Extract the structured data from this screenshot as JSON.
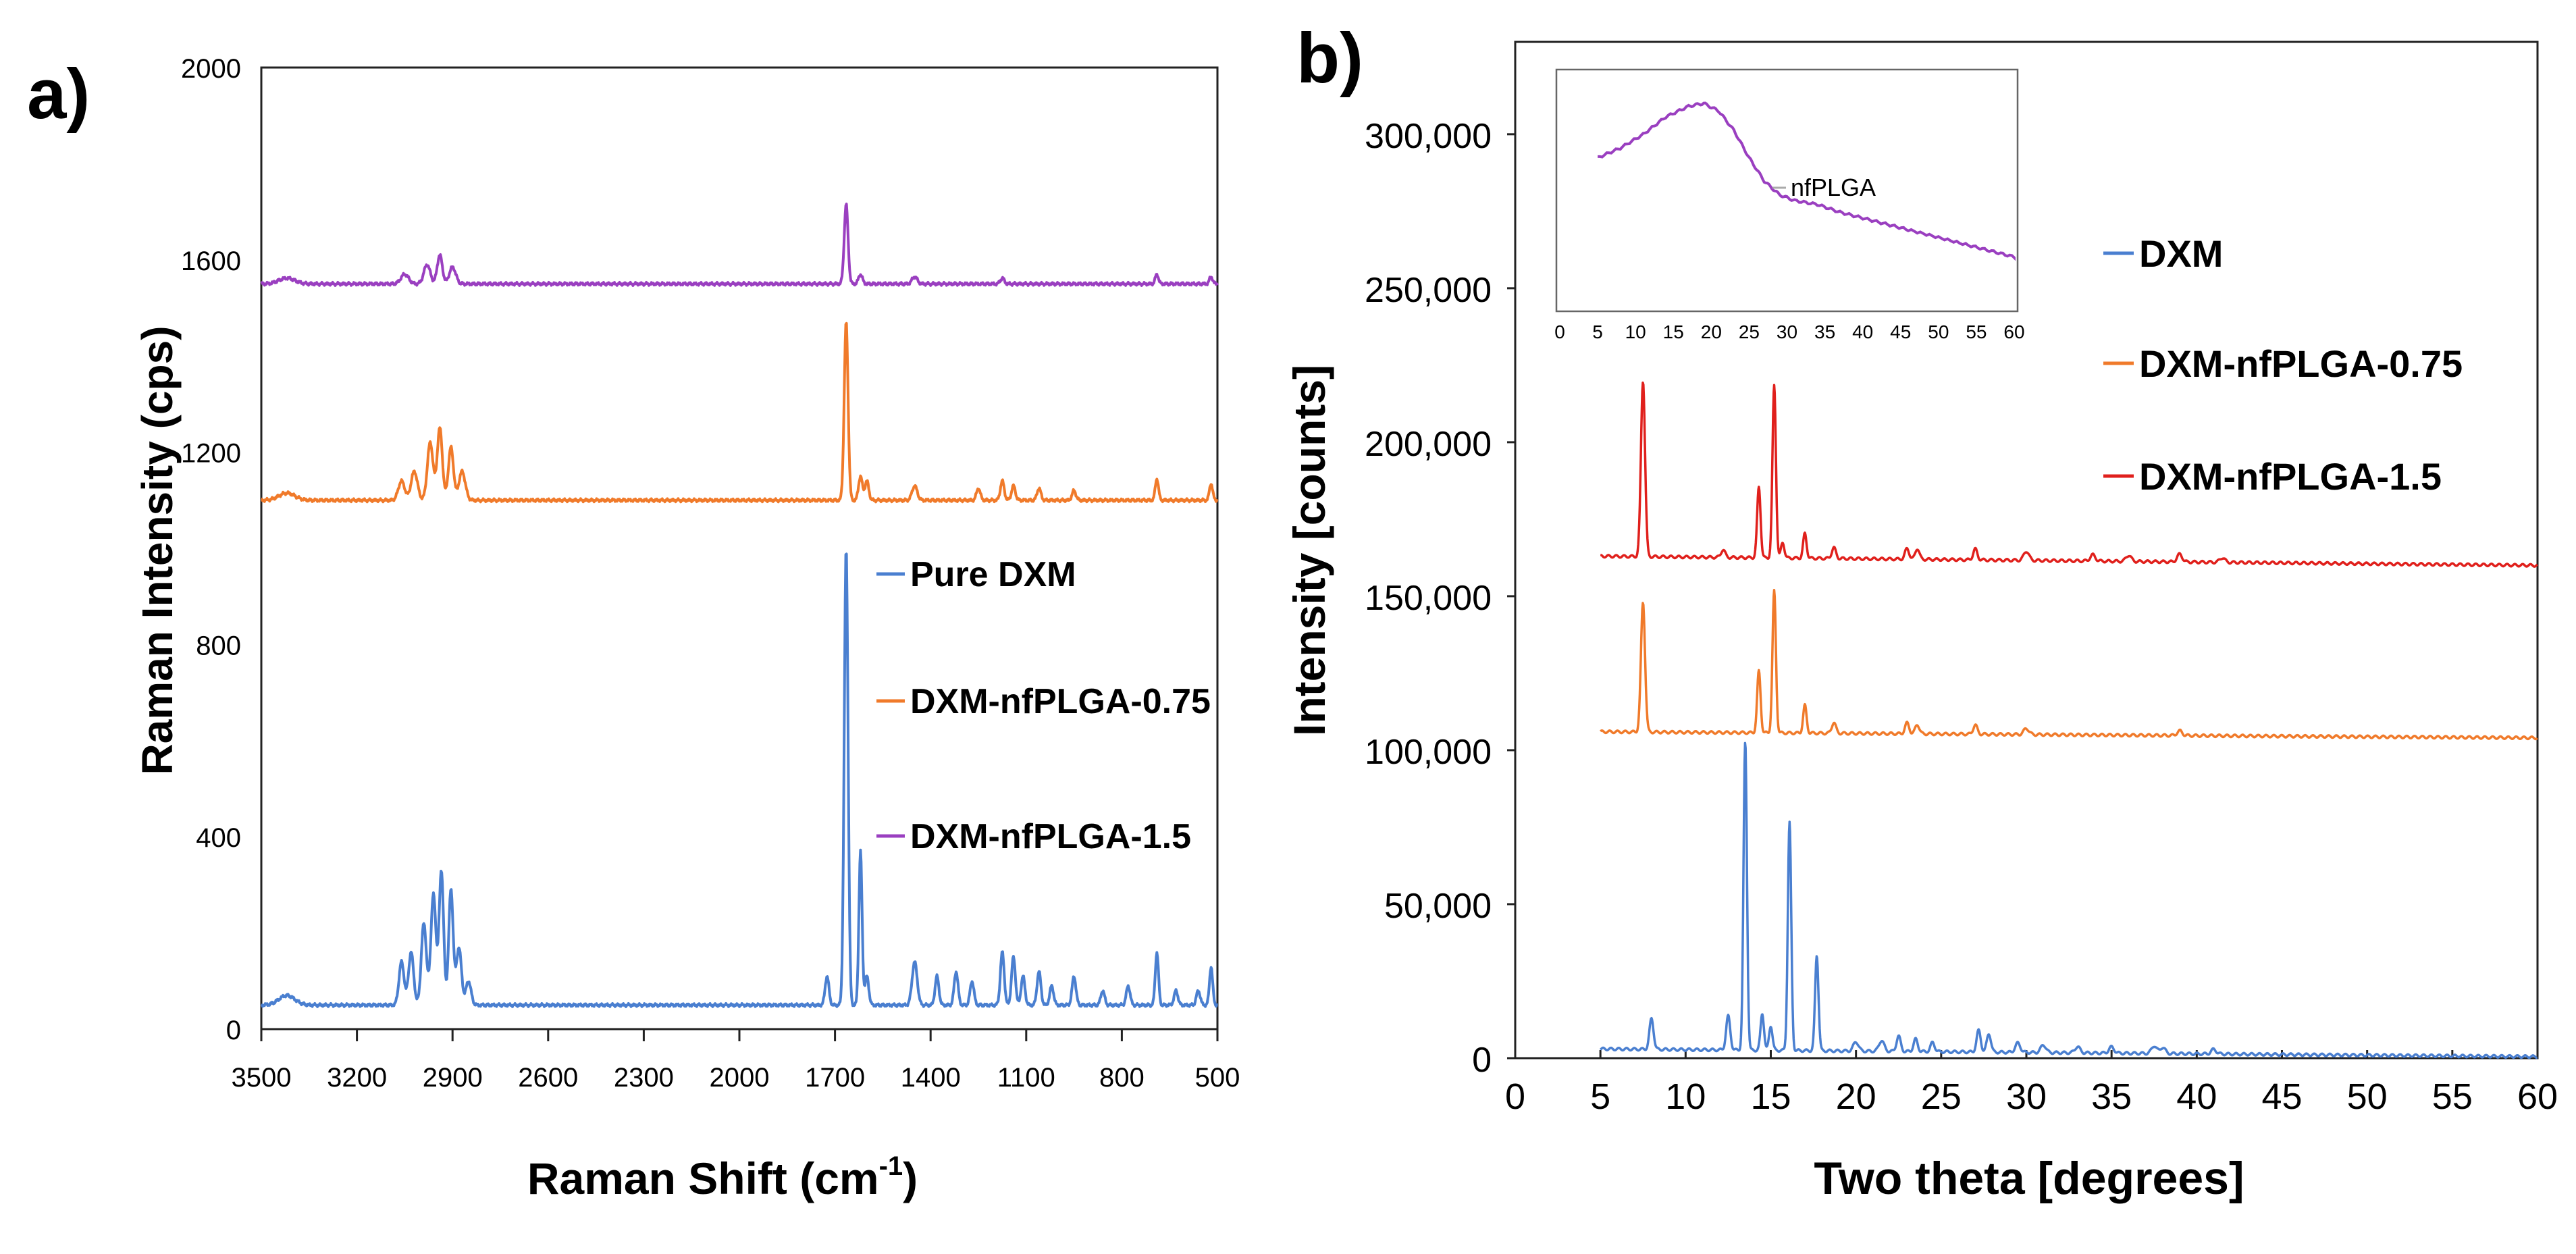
{
  "chart_data": [
    {
      "panel": "a)",
      "type": "line",
      "title": "",
      "xlabel_main": "Raman Shift (cm",
      "xlabel_sup": "-1",
      "xlabel_close": ")",
      "ylabel": "Raman Intensity (cps)",
      "xlim": [
        3500,
        500
      ],
      "ylim": [
        0,
        2000
      ],
      "xticks": [
        "3500",
        "3200",
        "2900",
        "2600",
        "2300",
        "2000",
        "1700",
        "1400",
        "1100",
        "800",
        "500"
      ],
      "yticks": [
        "0",
        "400",
        "800",
        "1200",
        "1600",
        "2000"
      ],
      "legend": [
        "Pure DXM",
        "DXM-nfPLGA-0.75",
        "DXM-nfPLGA-1.5"
      ],
      "series": [
        {
          "name": "Pure DXM",
          "color": "#4a7fd0",
          "baseline": 50,
          "peaks": [
            [
              3420,
              20,
              25
            ],
            [
              3060,
              90,
              8
            ],
            [
              3030,
              110,
              8
            ],
            [
              2990,
              170,
              8
            ],
            [
              2960,
              230,
              8
            ],
            [
              2935,
              280,
              7
            ],
            [
              2905,
              240,
              7
            ],
            [
              2880,
              120,
              8
            ],
            [
              2850,
              50,
              8
            ],
            [
              1725,
              60,
              6
            ],
            [
              1665,
              950,
              6
            ],
            [
              1620,
              320,
              5
            ],
            [
              1600,
              60,
              6
            ],
            [
              1450,
              90,
              8
            ],
            [
              1380,
              60,
              6
            ],
            [
              1320,
              70,
              6
            ],
            [
              1270,
              50,
              6
            ],
            [
              1175,
              110,
              6
            ],
            [
              1140,
              100,
              6
            ],
            [
              1110,
              60,
              6
            ],
            [
              1060,
              70,
              6
            ],
            [
              1020,
              40,
              6
            ],
            [
              950,
              60,
              6
            ],
            [
              860,
              30,
              6
            ],
            [
              780,
              40,
              6
            ],
            [
              690,
              110,
              5
            ],
            [
              630,
              30,
              6
            ],
            [
              560,
              30,
              6
            ],
            [
              520,
              80,
              5
            ]
          ]
        },
        {
          "name": "DXM-nfPLGA-0.75",
          "color": "#f07a2a",
          "baseline": 1100,
          "peaks": [
            [
              3420,
              15,
              25
            ],
            [
              3060,
              40,
              10
            ],
            [
              3020,
              60,
              10
            ],
            [
              2970,
              120,
              9
            ],
            [
              2940,
              150,
              8
            ],
            [
              2905,
              110,
              8
            ],
            [
              2870,
              60,
              10
            ],
            [
              1665,
              370,
              6
            ],
            [
              1620,
              50,
              6
            ],
            [
              1600,
              40,
              6
            ],
            [
              1450,
              30,
              8
            ],
            [
              1250,
              25,
              6
            ],
            [
              1175,
              40,
              6
            ],
            [
              1140,
              30,
              6
            ],
            [
              1060,
              25,
              6
            ],
            [
              950,
              20,
              6
            ],
            [
              690,
              45,
              5
            ],
            [
              520,
              35,
              5
            ]
          ]
        },
        {
          "name": "DXM-nfPLGA-1.5",
          "color": "#9a3fc0",
          "baseline": 1550,
          "peaks": [
            [
              3420,
              12,
              25
            ],
            [
              3050,
              20,
              12
            ],
            [
              2980,
              40,
              10
            ],
            [
              2940,
              60,
              8
            ],
            [
              2900,
              35,
              10
            ],
            [
              1665,
              165,
              6
            ],
            [
              1620,
              20,
              6
            ],
            [
              1450,
              15,
              8
            ],
            [
              1175,
              12,
              6
            ],
            [
              690,
              20,
              5
            ],
            [
              520,
              15,
              5
            ]
          ]
        }
      ]
    },
    {
      "panel": "b)",
      "type": "line",
      "title": "",
      "xlabel": "Two theta [degrees]",
      "ylabel": "Intensity [counts]",
      "xlim": [
        0,
        60
      ],
      "ylim": [
        0,
        330000
      ],
      "xticks": [
        "0",
        "5",
        "10",
        "15",
        "20",
        "25",
        "30",
        "35",
        "40",
        "45",
        "50",
        "55",
        "60"
      ],
      "yticks": [
        "0",
        "50,000",
        "100,000",
        "150,000",
        "200,000",
        "250,000",
        "300,000"
      ],
      "legend": [
        "DXM",
        "DXM-nfPLGA-0.75",
        "DXM-nfPLGA-1.5"
      ],
      "series": [
        {
          "name": "DXM",
          "color": "#4a7fd0",
          "baseline_start": 3000,
          "baseline_end": 500,
          "peaks": [
            [
              8.0,
              10000,
              0.12
            ],
            [
              12.5,
              11000,
              0.12
            ],
            [
              13.5,
              100000,
              0.1
            ],
            [
              14.5,
              12000,
              0.1
            ],
            [
              15.0,
              8000,
              0.1
            ],
            [
              16.1,
              74000,
              0.1
            ],
            [
              17.7,
              31000,
              0.1
            ],
            [
              20.0,
              3000,
              0.15
            ],
            [
              21.5,
              3500,
              0.15
            ],
            [
              22.5,
              5000,
              0.12
            ],
            [
              23.5,
              4000,
              0.12
            ],
            [
              24.5,
              3000,
              0.12
            ],
            [
              27.2,
              7000,
              0.12
            ],
            [
              27.8,
              6000,
              0.12
            ],
            [
              29.5,
              3000,
              0.15
            ],
            [
              31.0,
              2500,
              0.15
            ],
            [
              33.0,
              2000,
              0.15
            ],
            [
              35.0,
              2000,
              0.15
            ],
            [
              37.5,
              2500,
              0.15
            ],
            [
              38.0,
              2000,
              0.15
            ],
            [
              41.0,
              1500,
              0.15
            ]
          ]
        },
        {
          "name": "DXM-nfPLGA-0.75",
          "color": "#f07a2a",
          "baseline_start": 106000,
          "baseline_end": 104000,
          "peaks": [
            [
              7.5,
              42000,
              0.12
            ],
            [
              14.3,
              20000,
              0.1
            ],
            [
              15.2,
              46000,
              0.1
            ],
            [
              17.0,
              9000,
              0.1
            ],
            [
              18.7,
              3500,
              0.12
            ],
            [
              23.0,
              3500,
              0.12
            ],
            [
              23.6,
              3000,
              0.12
            ],
            [
              27.0,
              3000,
              0.12
            ],
            [
              30.0,
              2000,
              0.15
            ],
            [
              39.0,
              1500,
              0.15
            ]
          ]
        },
        {
          "name": "DXM-nfPLGA-1.5",
          "color": "#e0201c",
          "baseline_start": 163000,
          "baseline_end": 160000,
          "peaks": [
            [
              7.5,
              57000,
              0.12
            ],
            [
              12.2,
              2500,
              0.12
            ],
            [
              14.3,
              23000,
              0.1
            ],
            [
              15.2,
              56000,
              0.1
            ],
            [
              15.7,
              5000,
              0.1
            ],
            [
              17.0,
              8000,
              0.1
            ],
            [
              18.7,
              3500,
              0.12
            ],
            [
              23.0,
              3500,
              0.12
            ],
            [
              23.6,
              3500,
              0.12
            ],
            [
              27.0,
              3500,
              0.12
            ],
            [
              30.0,
              3000,
              0.15
            ],
            [
              33.9,
              2000,
              0.15
            ],
            [
              36.0,
              2000,
              0.15
            ],
            [
              39.0,
              2500,
              0.15
            ],
            [
              41.5,
              1500,
              0.15
            ]
          ]
        }
      ],
      "inset": {
        "xlim": [
          0,
          60
        ],
        "xticks": [
          "0",
          "5",
          "10",
          "15",
          "20",
          "25",
          "30",
          "35",
          "40",
          "45",
          "50",
          "55",
          "60"
        ],
        "legend": "nfPLGA",
        "color": "#9a3fc0",
        "series": {
          "name": "nfPLGA",
          "points": [
            [
              5,
              0.72
            ],
            [
              8,
              0.77
            ],
            [
              11,
              0.84
            ],
            [
              14,
              0.93
            ],
            [
              17,
              0.985
            ],
            [
              19,
              1.0
            ],
            [
              21,
              0.96
            ],
            [
              23,
              0.86
            ],
            [
              25,
              0.72
            ],
            [
              27,
              0.6
            ],
            [
              29,
              0.53
            ],
            [
              31,
              0.5
            ],
            [
              34,
              0.48
            ],
            [
              37,
              0.44
            ],
            [
              40,
              0.41
            ],
            [
              43,
              0.38
            ],
            [
              46,
              0.35
            ],
            [
              50,
              0.31
            ],
            [
              54,
              0.27
            ],
            [
              57,
              0.24
            ],
            [
              60,
              0.21
            ]
          ]
        }
      }
    }
  ]
}
